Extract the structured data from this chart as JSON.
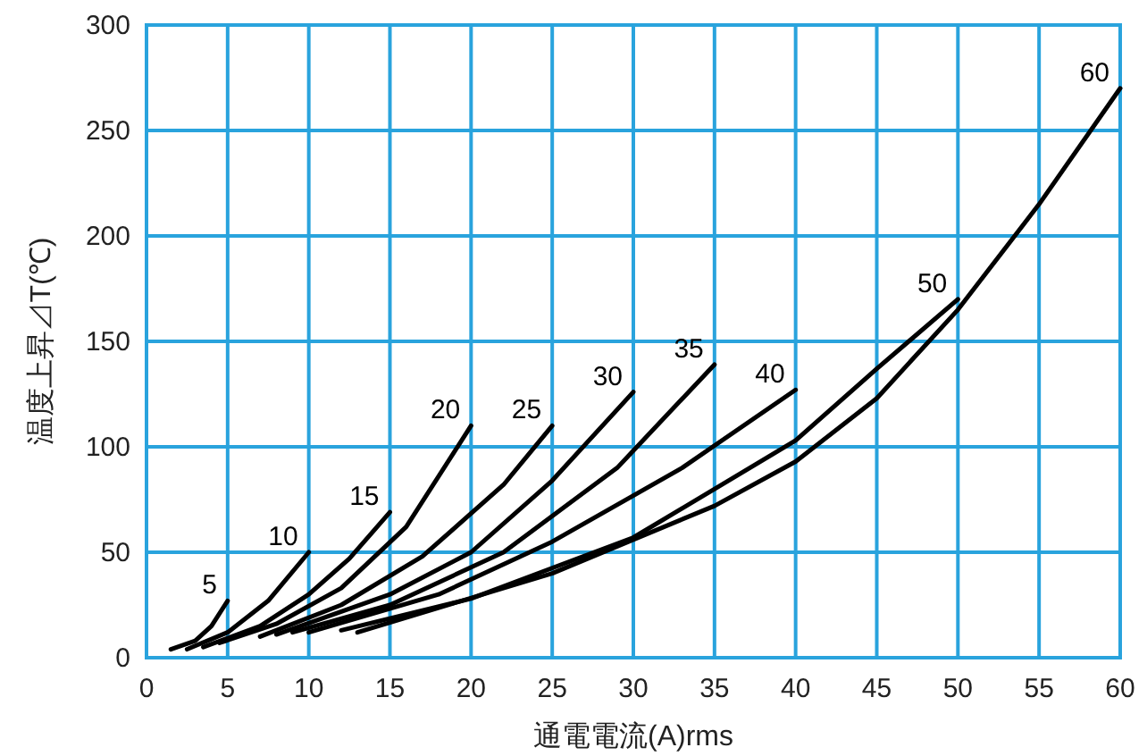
{
  "chart_data": {
    "type": "line",
    "xlabel": "通電電流(A)rms",
    "ylabel": "温度上昇⊿T(℃)",
    "xlim": [
      0,
      60
    ],
    "ylim": [
      0,
      300
    ],
    "xticks": [
      0,
      5,
      10,
      15,
      20,
      25,
      30,
      35,
      40,
      45,
      50,
      55,
      60
    ],
    "yticks": [
      0,
      50,
      100,
      150,
      200,
      250,
      300
    ],
    "grid": true,
    "series": [
      {
        "name": "5",
        "color": "#000000",
        "x": [
          1.5,
          3,
          4,
          5
        ],
        "values": [
          4,
          8,
          15,
          27
        ]
      },
      {
        "name": "10",
        "color": "#000000",
        "x": [
          2.5,
          5,
          7.5,
          10
        ],
        "values": [
          4,
          12,
          27,
          50
        ]
      },
      {
        "name": "15",
        "color": "#000000",
        "x": [
          3.5,
          7,
          10,
          12.5,
          15
        ],
        "values": [
          5,
          15,
          30,
          47,
          69
        ]
      },
      {
        "name": "20",
        "color": "#000000",
        "x": [
          4.5,
          8,
          12,
          16,
          20
        ],
        "values": [
          7,
          16,
          33,
          62,
          110
        ]
      },
      {
        "name": "25",
        "color": "#000000",
        "x": [
          7,
          12,
          17,
          22,
          25
        ],
        "values": [
          10,
          25,
          48,
          82,
          110
        ]
      },
      {
        "name": "30",
        "color": "#000000",
        "x": [
          8,
          15,
          20,
          25,
          30
        ],
        "values": [
          11,
          30,
          50,
          84,
          126
        ]
      },
      {
        "name": "35",
        "color": "#000000",
        "x": [
          9,
          15,
          22,
          29,
          35
        ],
        "values": [
          12,
          25,
          50,
          90,
          139
        ]
      },
      {
        "name": "40",
        "color": "#000000",
        "x": [
          10,
          18,
          25,
          33,
          40
        ],
        "values": [
          12,
          30,
          55,
          90,
          127
        ]
      },
      {
        "name": "50",
        "color": "#000000",
        "x": [
          12,
          20,
          30,
          40,
          45,
          50
        ],
        "values": [
          13,
          28,
          57,
          103,
          137,
          170
        ]
      },
      {
        "name": "60",
        "color": "#000000",
        "x": [
          13,
          25,
          35,
          40,
          45,
          50,
          55,
          60
        ],
        "values": [
          12,
          40,
          72,
          93,
          123,
          165,
          215,
          270
        ]
      }
    ]
  }
}
